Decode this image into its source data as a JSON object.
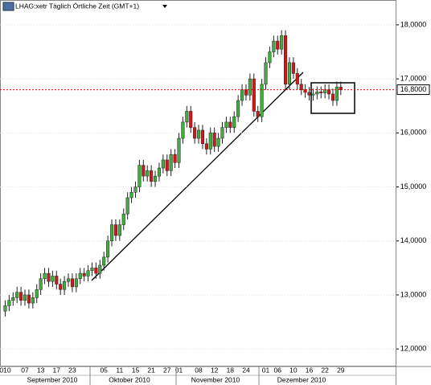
{
  "chart_data": {
    "type": "candlestick",
    "header": "LHAG:xetr Täglich Örtliche Zeit (GMT+1)",
    "categories": [
      "010",
      null,
      null,
      null,
      null,
      "07",
      null,
      null,
      null,
      "13",
      null,
      null,
      null,
      "17",
      null,
      null,
      null,
      "23",
      null,
      null,
      null,
      null,
      null,
      null,
      null,
      "05",
      null,
      null,
      null,
      "11",
      null,
      null,
      null,
      "15",
      null,
      null,
      null,
      "21",
      null,
      null,
      null,
      "27",
      null,
      null,
      "01",
      null,
      null,
      null,
      null,
      "08",
      null,
      null,
      null,
      "12",
      null,
      null,
      null,
      "18",
      null,
      null,
      null,
      "24",
      null,
      null,
      null,
      null,
      "01",
      null,
      null,
      "06",
      null,
      null,
      null,
      "10",
      null,
      null,
      null,
      "16",
      null,
      null,
      null,
      "22",
      null,
      null,
      null,
      "29"
    ],
    "x_group_labels": [
      "September 2010",
      "Oktober 2010",
      "November 2010",
      "Dezember 2010"
    ],
    "open": [
      12.7,
      12.8,
      12.9,
      12.95,
      13.05,
      12.9,
      13.0,
      12.85,
      12.95,
      13.1,
      13.3,
      13.4,
      13.25,
      13.35,
      13.2,
      13.1,
      13.25,
      13.3,
      13.15,
      13.3,
      13.4,
      13.35,
      13.45,
      13.5,
      13.4,
      13.55,
      13.7,
      14.0,
      14.3,
      14.1,
      14.3,
      14.5,
      14.8,
      14.9,
      15.0,
      15.4,
      15.2,
      15.3,
      15.1,
      15.2,
      15.35,
      15.5,
      15.3,
      15.6,
      15.45,
      15.9,
      16.2,
      16.4,
      16.1,
      15.9,
      16.05,
      15.8,
      15.7,
      16.0,
      15.75,
      15.9,
      16.1,
      16.2,
      16.1,
      16.3,
      16.6,
      16.8,
      16.7,
      17.0,
      16.4,
      16.3,
      16.9,
      17.3,
      17.5,
      17.7,
      17.55,
      17.8,
      16.9,
      17.3,
      17.1,
      16.9,
      16.8,
      16.75,
      16.7,
      16.72,
      16.76,
      16.74,
      16.8,
      16.72,
      16.6,
      16.85
    ],
    "high": [
      12.9,
      13.0,
      13.05,
      13.15,
      13.15,
      13.1,
      13.1,
      13.05,
      13.2,
      13.4,
      13.5,
      13.5,
      13.45,
      13.45,
      13.3,
      13.35,
      13.4,
      13.4,
      13.4,
      13.5,
      13.5,
      13.55,
      13.6,
      13.6,
      13.65,
      13.8,
      14.1,
      14.4,
      14.4,
      14.4,
      14.6,
      14.9,
      15.0,
      15.1,
      15.5,
      15.5,
      15.4,
      15.4,
      15.3,
      15.45,
      15.6,
      15.6,
      15.7,
      15.7,
      16.0,
      16.3,
      16.5,
      16.5,
      16.2,
      16.15,
      16.15,
      15.9,
      16.1,
      16.1,
      16.0,
      16.2,
      16.3,
      16.3,
      16.4,
      16.7,
      16.9,
      16.9,
      17.1,
      17.1,
      16.5,
      17.0,
      17.4,
      17.6,
      17.8,
      17.8,
      17.9,
      17.9,
      17.4,
      17.4,
      17.2,
      17.0,
      16.9,
      16.85,
      16.82,
      16.86,
      16.86,
      16.9,
      16.9,
      16.82,
      16.95,
      16.95
    ],
    "low": [
      12.6,
      12.7,
      12.8,
      12.85,
      12.8,
      12.8,
      12.75,
      12.75,
      12.85,
      13.0,
      13.2,
      13.15,
      13.15,
      13.1,
      13.0,
      13.0,
      13.15,
      13.05,
      13.05,
      13.2,
      13.25,
      13.25,
      13.35,
      13.3,
      13.3,
      13.45,
      13.6,
      13.9,
      14.0,
      14.0,
      14.2,
      14.4,
      14.7,
      14.8,
      14.9,
      15.1,
      15.1,
      15.0,
      15.0,
      15.1,
      15.25,
      15.2,
      15.2,
      15.35,
      15.35,
      15.8,
      16.1,
      16.0,
      15.8,
      15.8,
      15.7,
      15.6,
      15.6,
      15.65,
      15.65,
      15.8,
      16.0,
      16.0,
      16.0,
      16.2,
      16.5,
      16.6,
      16.6,
      16.3,
      16.2,
      16.2,
      16.8,
      17.2,
      17.4,
      17.45,
      17.45,
      16.8,
      16.8,
      17.0,
      16.8,
      16.7,
      16.65,
      16.6,
      16.6,
      16.62,
      16.64,
      16.64,
      16.62,
      16.5,
      16.5,
      16.7
    ],
    "close": [
      12.8,
      12.9,
      12.95,
      13.05,
      12.9,
      13.0,
      12.85,
      12.95,
      13.1,
      13.3,
      13.4,
      13.25,
      13.35,
      13.2,
      13.1,
      13.25,
      13.3,
      13.15,
      13.3,
      13.4,
      13.35,
      13.45,
      13.5,
      13.4,
      13.55,
      13.7,
      14.0,
      14.3,
      14.1,
      14.3,
      14.5,
      14.8,
      14.9,
      15.0,
      15.4,
      15.2,
      15.3,
      15.1,
      15.2,
      15.35,
      15.5,
      15.3,
      15.6,
      15.45,
      15.9,
      16.2,
      16.4,
      16.1,
      15.9,
      16.05,
      15.8,
      15.7,
      16.0,
      15.75,
      15.9,
      16.1,
      16.2,
      16.1,
      16.3,
      16.6,
      16.8,
      16.7,
      17.0,
      16.4,
      16.3,
      16.9,
      17.3,
      17.5,
      17.7,
      17.55,
      17.8,
      16.9,
      17.3,
      17.1,
      16.9,
      16.8,
      16.75,
      16.7,
      16.72,
      16.76,
      16.74,
      16.8,
      16.72,
      16.6,
      16.85,
      16.8
    ],
    "up_color": "#3fae3f",
    "down_color": "#d01818",
    "ylim": [
      11.69,
      18.46
    ],
    "yticks": [
      {
        "value": 12,
        "label": "12,0000"
      },
      {
        "value": 13,
        "label": "13,0000"
      },
      {
        "value": 14,
        "label": "14,0000"
      },
      {
        "value": 15,
        "label": "15,0000"
      },
      {
        "value": 16,
        "label": "16,0000"
      },
      {
        "value": 17,
        "label": "17,0000"
      },
      {
        "value": 18,
        "label": "18,0000"
      }
    ],
    "reference_line": {
      "value": 16.8,
      "label": "16,8000",
      "color": "#e00000"
    },
    "grid": true
  }
}
